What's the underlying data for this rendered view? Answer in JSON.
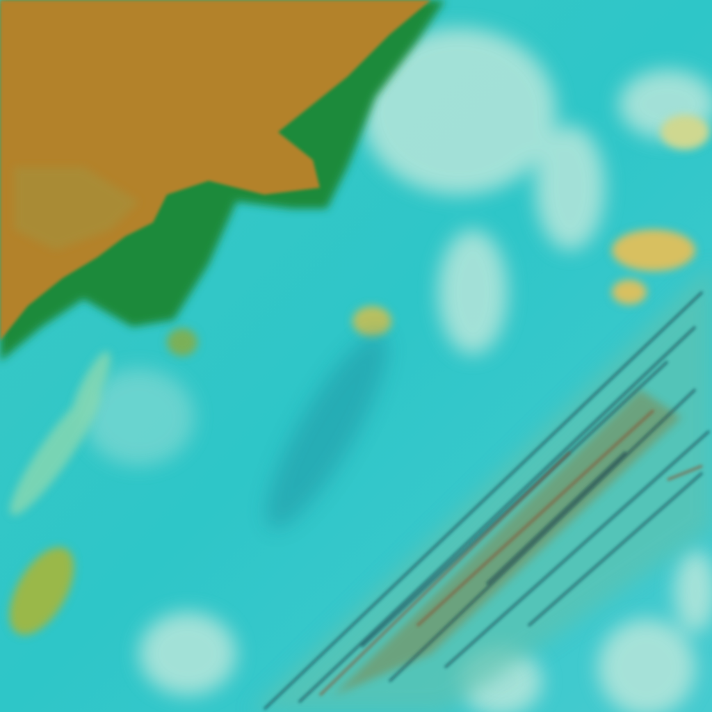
{
  "image": {
    "kind": "false-color satellite imagery",
    "colors": {
      "ocean": "#2fc6c8",
      "ocean_light": "#5cd6d2",
      "land": "#b3822c",
      "land_edge": "#1f8a3a",
      "cloud": "#bfe8dc",
      "cloud_yellow": "#d8c060",
      "streak_dark": "#0e3a4a",
      "streak_red": "#8a4a2a"
    }
  }
}
